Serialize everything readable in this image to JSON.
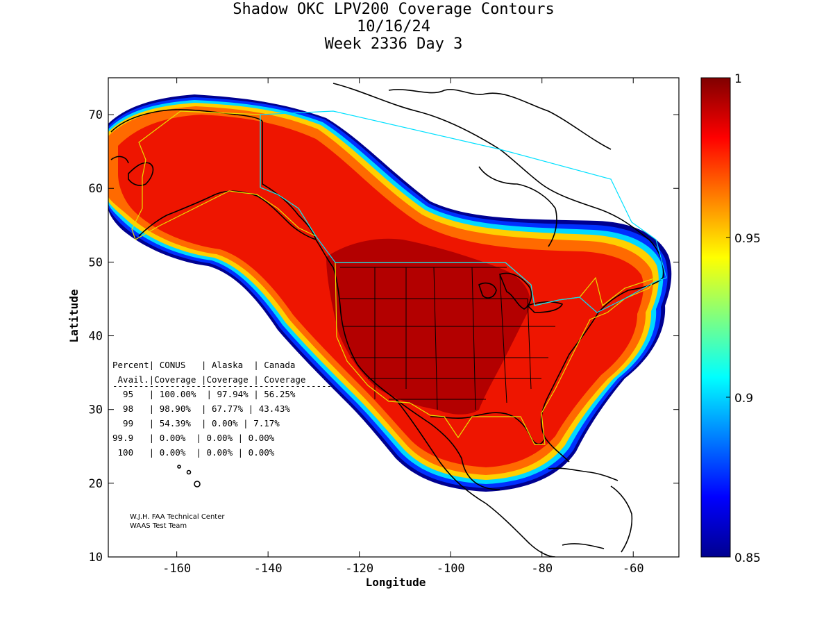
{
  "title": {
    "line1": "Shadow OKC LPV200 Coverage Contours",
    "line2": "10/16/24",
    "line3": "Week 2336 Day 3"
  },
  "axes": {
    "xlabel": "Longitude",
    "ylabel": "Latitude",
    "xlim": [
      -175,
      -50
    ],
    "ylim": [
      10,
      75
    ],
    "xticks": [
      "-160",
      "-140",
      "-120",
      "-100",
      "-80",
      "-60"
    ],
    "yticks": [
      "10",
      "20",
      "30",
      "40",
      "50",
      "60",
      "70"
    ]
  },
  "colorbar": {
    "range": [
      0.85,
      1
    ],
    "ticks": [
      "1",
      "0.95",
      "0.9",
      "0.85"
    ],
    "colormap": "jet"
  },
  "table": {
    "header1": "Percent| CONUS   | Alaska  | Canada",
    "header2": " Avail.|Coverage |Coverage | Coverage",
    "separator": "------------------------------------------",
    "rows": [
      "  95   | 100.00%  | 97.94% | 56.25%",
      "  98   | 98.90%  | 67.77% | 43.43%",
      "  99   | 54.39%  | 0.00% | 7.17%",
      "99.9   | 0.00%  | 0.00% | 0.00%",
      " 100   | 0.00%  | 0.00% | 0.00%"
    ]
  },
  "credit": {
    "line1": "W.J.H. FAA Technical Center",
    "line2": "WAAS Test Team"
  },
  "colors": {
    "deep_red": "#b30000",
    "red": "#ee1500",
    "orange": "#ff6a00",
    "yellow": "#ffd000",
    "cyan": "#00d8ff",
    "blue": "#0030ff",
    "navy": "#000090",
    "boundary_yellow": "#e8e000",
    "boundary_cyan": "#00e0ff"
  }
}
